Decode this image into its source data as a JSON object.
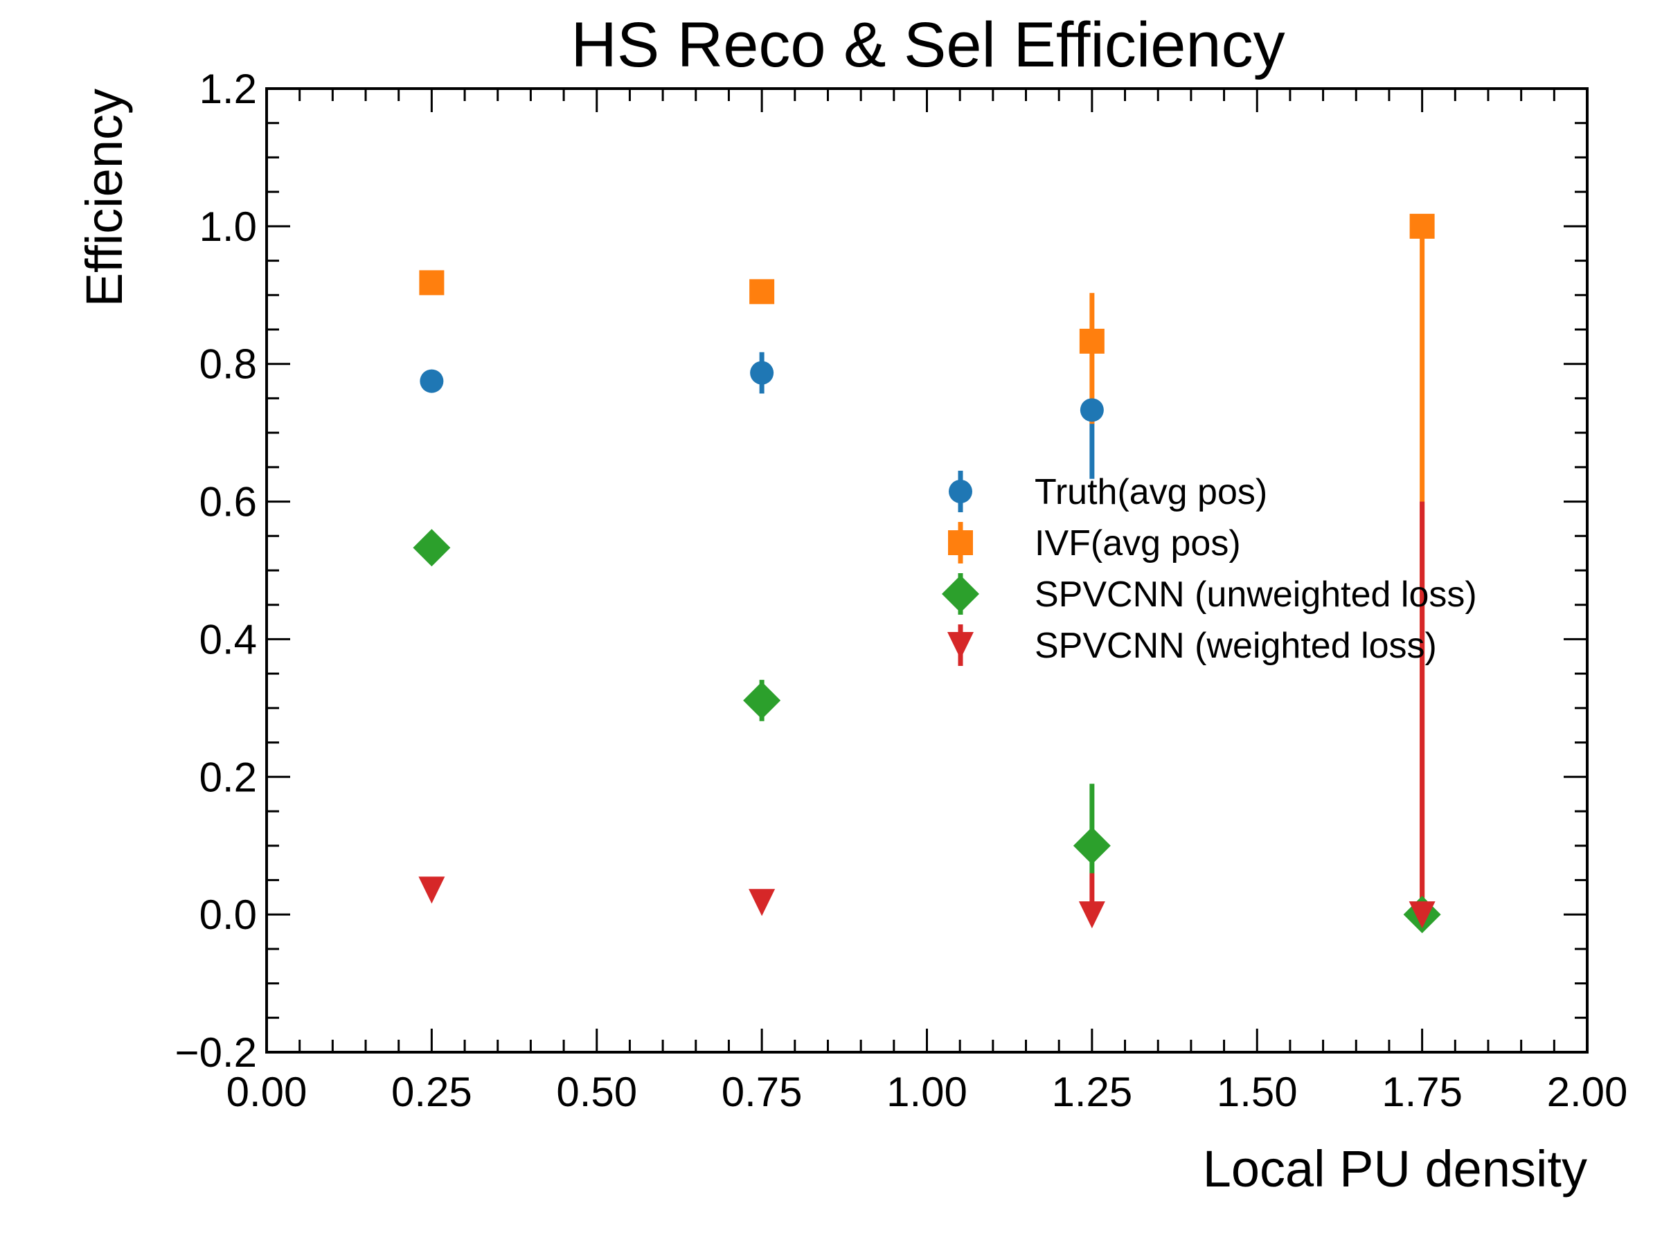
{
  "chart_data": {
    "type": "scatter",
    "title": "HS Reco & Sel Efficiency",
    "xlabel": "Local PU density",
    "ylabel": "Efficiency",
    "xlim": [
      0.0,
      2.0
    ],
    "ylim": [
      -0.2,
      1.2
    ],
    "xticks": [
      "0.00",
      "0.25",
      "0.50",
      "0.75",
      "1.00",
      "1.25",
      "1.50",
      "1.75",
      "2.00"
    ],
    "yticks": [
      "−0.2",
      "0.0",
      "0.2",
      "0.4",
      "0.6",
      "0.8",
      "1.0",
      "1.2"
    ],
    "grid": false,
    "legend_position": "center-right",
    "series": [
      {
        "name": "Truth(avg pos)",
        "marker": "circle",
        "color": "#1f77b4",
        "x": [
          0.25,
          0.75,
          1.25
        ],
        "y": [
          0.775,
          0.787,
          0.733
        ],
        "yerr_low": [
          0.0,
          0.03,
          0.1
        ],
        "yerr_high": [
          0.0,
          0.03,
          0.0
        ]
      },
      {
        "name": "IVF(avg pos)",
        "marker": "square",
        "color": "#ff7f0e",
        "x": [
          0.25,
          0.75,
          1.25,
          1.75
        ],
        "y": [
          0.918,
          0.905,
          0.833,
          1.0
        ],
        "yerr_low": [
          0.0,
          0.01,
          0.12,
          1.0
        ],
        "yerr_high": [
          0.0,
          0.01,
          0.07,
          0.0
        ]
      },
      {
        "name": "SPVCNN (unweighted loss)",
        "marker": "diamond",
        "color": "#2ca02c",
        "x": [
          0.25,
          0.75,
          1.25,
          1.75
        ],
        "y": [
          0.533,
          0.311,
          0.1,
          0.0
        ],
        "yerr_low": [
          0.0,
          0.03,
          0.04,
          0.0
        ],
        "yerr_high": [
          0.0,
          0.03,
          0.09,
          0.0
        ]
      },
      {
        "name": "SPVCNN (weighted loss)",
        "marker": "triangle-down",
        "color": "#d62728",
        "x": [
          0.25,
          0.75,
          1.25,
          1.75
        ],
        "y": [
          0.036,
          0.018,
          0.0,
          0.0
        ],
        "yerr_low": [
          0.0,
          0.0,
          0.0,
          0.0
        ],
        "yerr_high": [
          0.0,
          0.0,
          0.06,
          0.6
        ]
      }
    ]
  }
}
